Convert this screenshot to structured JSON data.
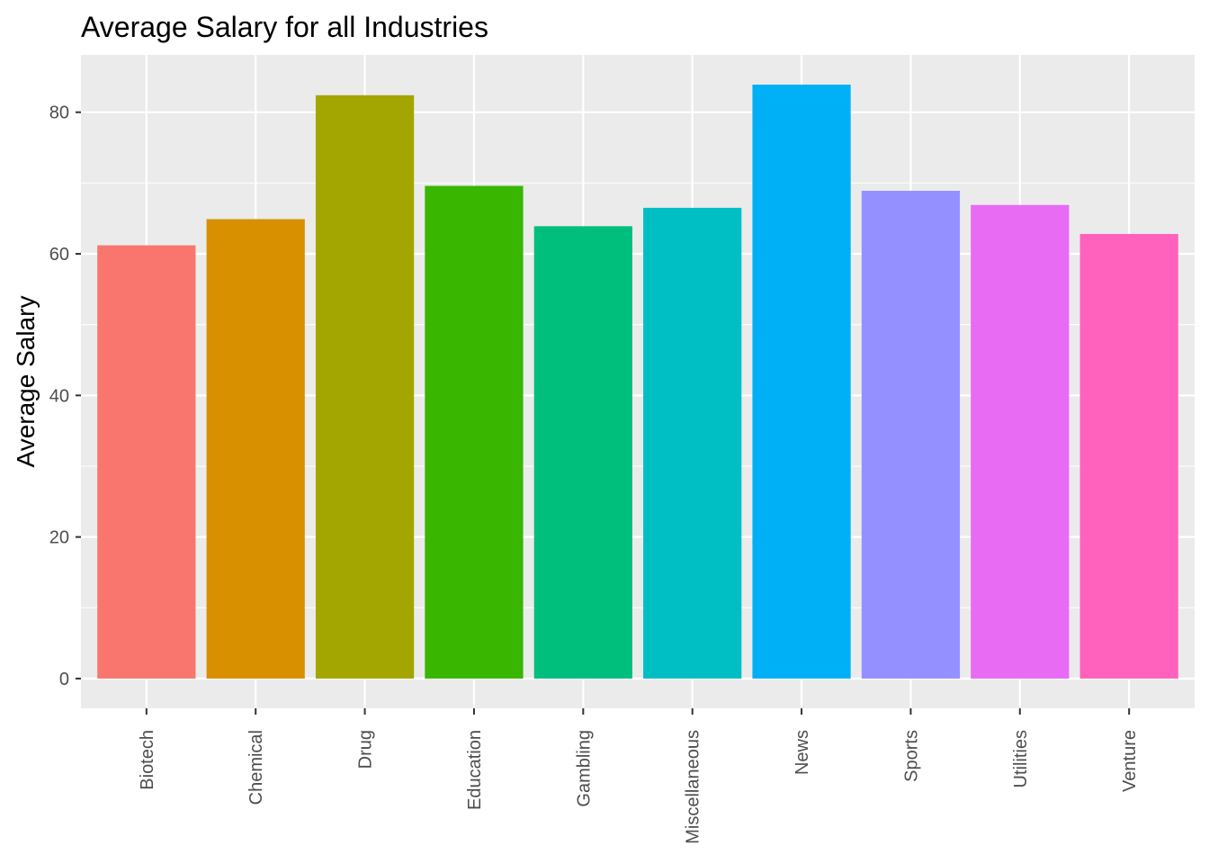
{
  "chart_data": {
    "type": "bar",
    "title": "Average Salary for all Industries",
    "xlabel": "",
    "ylabel": "Average Salary",
    "categories": [
      "Biotech",
      "Chemical",
      "Drug",
      "Education",
      "Gambling",
      "Miscellaneous",
      "News",
      "Sports",
      "Utilities",
      "Venture"
    ],
    "values": [
      61.2,
      64.9,
      82.4,
      69.6,
      63.9,
      66.5,
      83.9,
      68.9,
      66.9,
      62.8
    ],
    "colors": [
      "#F8766D",
      "#D89000",
      "#A3A500",
      "#39B600",
      "#00BF7D",
      "#00BFC4",
      "#00B0F6",
      "#9590FF",
      "#E76BF3",
      "#FF62BC"
    ],
    "y_ticks": [
      0,
      20,
      40,
      60,
      80
    ],
    "ylim": [
      -4.2,
      88.1
    ],
    "legend": "none",
    "grid": true,
    "panel_background": "#EBEBEB",
    "gridline_color": "#FFFFFF"
  }
}
